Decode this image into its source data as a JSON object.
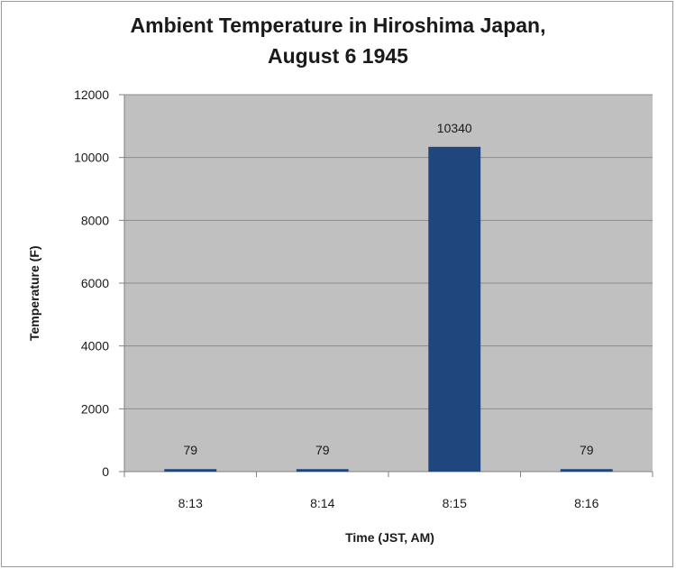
{
  "chart_data": {
    "type": "bar",
    "title_line1": "Ambient Temperature in Hiroshima Japan,",
    "title_line2": "August 6 1945",
    "xlabel": "Time (JST,  AM)",
    "ylabel": "Temperature (F)",
    "categories": [
      "8:13",
      "8:14",
      "8:15",
      "8:16"
    ],
    "values": [
      79,
      79,
      10340,
      79
    ],
    "data_labels": [
      "79",
      "79",
      "10340",
      "79"
    ],
    "ylim": [
      0,
      12000
    ],
    "yticks": [
      0,
      2000,
      4000,
      6000,
      8000,
      10000,
      12000
    ],
    "grid": true,
    "legend": "none",
    "colors": {
      "bar": "#1f477d",
      "plot_background": "#c0c0c0",
      "gridline": "#8c8c8c"
    }
  }
}
